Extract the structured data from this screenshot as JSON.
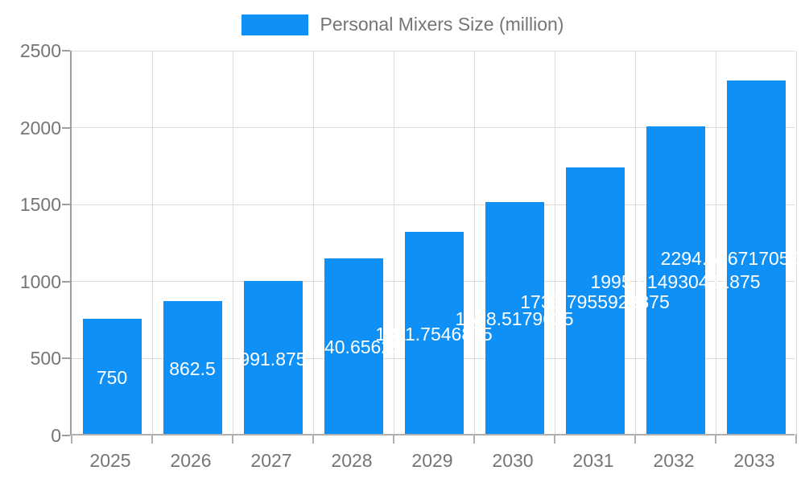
{
  "legend": {
    "label": "Personal Mixers Size (million)",
    "swatch_color": "#0e90f7"
  },
  "chart_data": {
    "type": "bar",
    "title": "Personal Mixers Size (million)",
    "series_name": "Personal Mixers Size (million)",
    "categories": [
      "2025",
      "2026",
      "2027",
      "2028",
      "2029",
      "2030",
      "2031",
      "2032",
      "2033"
    ],
    "values": [
      750,
      862.5,
      991.875,
      1140.65625,
      1311.7546875,
      1508.5179625,
      1733.7955923875,
      1995.914930421875,
      2294.6667170507812
    ],
    "value_labels": [
      "750",
      "862.5",
      "991.875",
      "1140.65625",
      "1311.7546875",
      "1508.5179625",
      "1733.7955923875",
      "1995.914930421875",
      "2294.66671705078125"
    ],
    "xlabel": "",
    "ylabel": "",
    "ylim": [
      0,
      2500
    ],
    "y_ticks": [
      "0",
      "500",
      "1000",
      "1500",
      "2000",
      "2500"
    ],
    "grid": true,
    "legend_position": "top",
    "value_label_position": "inside-center",
    "colors": {
      "bar": "#0e90f7",
      "value_label": "#ffffff",
      "axis_text": "#757575",
      "gridline": "#dcdcdc",
      "axis_line": "#9e9e9e",
      "background": "#ffffff"
    }
  }
}
